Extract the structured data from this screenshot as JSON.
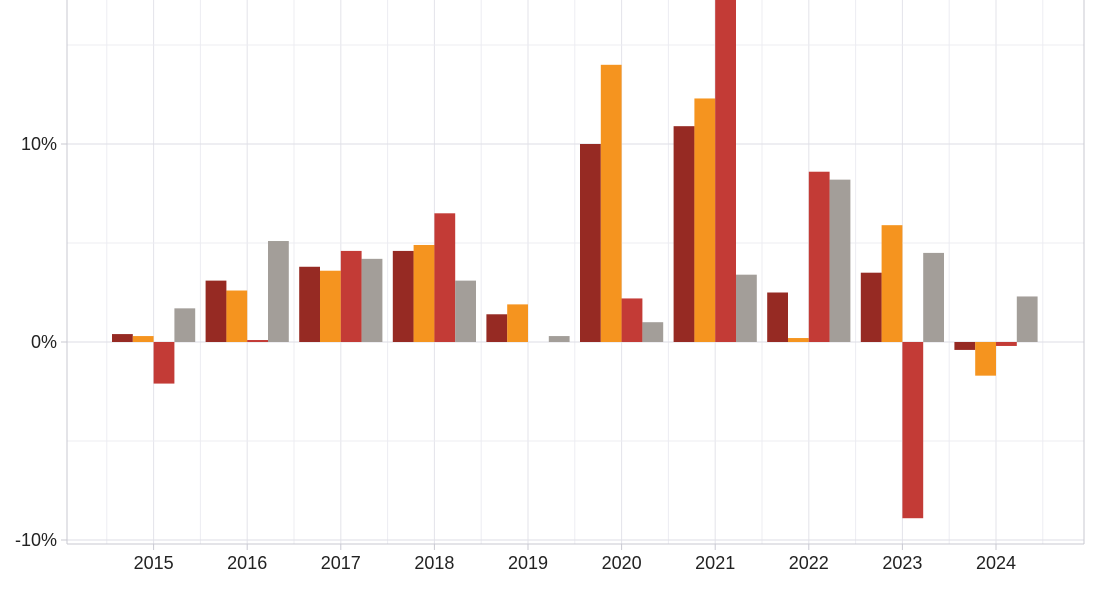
{
  "chart_data": {
    "type": "bar",
    "categories": [
      "2015",
      "2016",
      "2017",
      "2018",
      "2019",
      "2020",
      "2021",
      "2022",
      "2023",
      "2024"
    ],
    "series": [
      {
        "color": "#962a23",
        "values": [
          0.4,
          3.1,
          3.8,
          4.6,
          1.4,
          10.0,
          10.9,
          2.5,
          3.5,
          -0.4
        ]
      },
      {
        "color": "#f5941f",
        "values": [
          0.3,
          2.6,
          3.6,
          4.9,
          1.9,
          14.0,
          12.3,
          0.2,
          5.9,
          -1.7
        ]
      },
      {
        "color": "#c33b36",
        "values": [
          -2.1,
          0.1,
          4.6,
          6.5,
          0.0,
          2.2,
          17.4,
          8.6,
          -8.9,
          -0.2
        ]
      },
      {
        "color": "#a39e99",
        "values": [
          1.7,
          5.1,
          4.2,
          3.1,
          0.3,
          1.0,
          3.4,
          8.2,
          4.5,
          2.3
        ]
      }
    ],
    "y_ticks": [
      {
        "value": -10,
        "label": "-10%"
      },
      {
        "value": 0,
        "label": "0%"
      },
      {
        "value": 10,
        "label": "10%"
      }
    ],
    "ylim": [
      -10.2,
      17.4
    ],
    "grid": true,
    "title": "",
    "xlabel": "",
    "ylabel": ""
  }
}
